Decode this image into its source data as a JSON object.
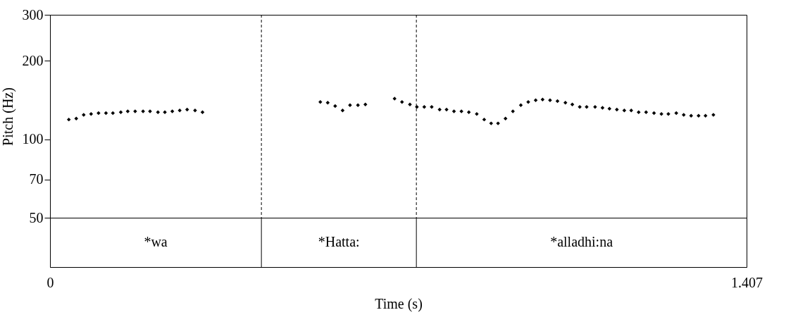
{
  "chart_data": {
    "type": "scatter",
    "xlabel": "Time (s)",
    "ylabel": "Pitch (Hz)",
    "log": "y",
    "grid": false,
    "marker": "diamond",
    "xlim": [
      0,
      1.407
    ],
    "xticks": [
      0,
      1.407
    ],
    "ylim": [
      50,
      300
    ],
    "yticks": [
      50,
      70,
      100,
      200,
      300
    ],
    "series": [
      {
        "color": "#000000",
        "x": [
          0.038,
          0.053,
          0.068,
          0.083,
          0.098,
          0.113,
          0.127,
          0.143,
          0.157,
          0.172,
          0.188,
          0.202,
          0.218,
          0.232,
          0.247,
          0.262,
          0.277,
          0.293,
          0.308,
          0.546,
          0.561,
          0.576,
          0.591,
          0.606,
          0.622,
          0.637,
          0.696,
          0.711,
          0.727,
          0.741,
          0.756,
          0.771,
          0.787,
          0.801,
          0.816,
          0.831,
          0.846,
          0.862,
          0.877,
          0.891,
          0.905,
          0.92,
          0.935,
          0.951,
          0.966,
          0.981,
          0.995,
          1.01,
          1.025,
          1.041,
          1.055,
          1.07,
          1.084,
          1.101,
          1.116,
          1.13,
          1.145,
          1.16,
          1.174,
          1.189,
          1.204,
          1.22,
          1.235,
          1.249,
          1.265,
          1.28,
          1.295,
          1.31,
          1.324,
          1.34
        ],
        "values": [
          119,
          120,
          124,
          125,
          126,
          126,
          126,
          127,
          128,
          128,
          128,
          128,
          127,
          127,
          128,
          129,
          130,
          129,
          127,
          139,
          138,
          134,
          129,
          135,
          135,
          136,
          143,
          139,
          136,
          133,
          133,
          133,
          130,
          130,
          128,
          128,
          127,
          125,
          119,
          115,
          115,
          120,
          128,
          135,
          139,
          141,
          142,
          141,
          140,
          138,
          136,
          133,
          133,
          133,
          132,
          131,
          130,
          129,
          129,
          127,
          127,
          126,
          125,
          125,
          126,
          124,
          123,
          123,
          123,
          124
        ]
      }
    ],
    "ref_lines": [
      {
        "axis": "x",
        "value": 0.427,
        "line_style": "dashed",
        "color": "#000000"
      },
      {
        "axis": "x",
        "value": 0.74,
        "line_style": "dashed",
        "color": "#000000"
      }
    ],
    "annotations": [
      "*wa",
      "*Hatta:",
      "*alladhi:na"
    ]
  }
}
